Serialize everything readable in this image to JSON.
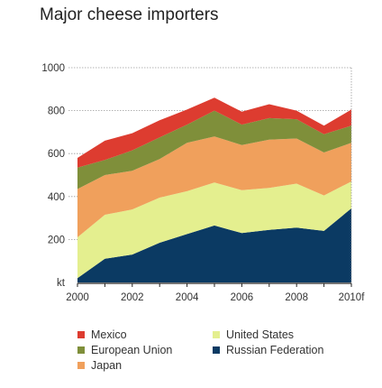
{
  "chart_data": {
    "type": "area",
    "stacked": true,
    "title": "Major cheese importers",
    "x": [
      2000,
      2001,
      2002,
      2003,
      2004,
      2005,
      2006,
      2007,
      2008,
      2009,
      2010
    ],
    "xticks": [
      "2000",
      "2002",
      "2004",
      "2006",
      "2008",
      "2010f"
    ],
    "yticks": [
      "kt",
      "200",
      "400",
      "600",
      "800",
      "1000"
    ],
    "ylim": [
      0,
      1000
    ],
    "grid": "dotted horizontal",
    "legend_position": "bottom",
    "series": [
      {
        "name": "Russian Federation",
        "color": "#0b3a63",
        "values": [
          20,
          110,
          130,
          185,
          225,
          265,
          230,
          245,
          255,
          240,
          345
        ]
      },
      {
        "name": "United States",
        "color": "#e4ef8f",
        "values": [
          190,
          205,
          210,
          210,
          200,
          200,
          200,
          195,
          205,
          165,
          125
        ]
      },
      {
        "name": "Japan",
        "color": "#f0a05c",
        "values": [
          225,
          185,
          180,
          180,
          225,
          215,
          210,
          225,
          210,
          200,
          180
        ]
      },
      {
        "name": "European Union",
        "color": "#7f8f3a",
        "values": [
          100,
          70,
          95,
          100,
          85,
          120,
          95,
          100,
          90,
          85,
          80
        ]
      },
      {
        "name": "Mexico",
        "color": "#dd3c30",
        "values": [
          45,
          90,
          80,
          80,
          70,
          60,
          60,
          65,
          40,
          40,
          75
        ]
      }
    ]
  },
  "legend": [
    {
      "label": "Mexico",
      "color": "#dd3c30"
    },
    {
      "label": "United States",
      "color": "#e4ef8f"
    },
    {
      "label": "European Union",
      "color": "#7f8f3a"
    },
    {
      "label": "Russian Federation",
      "color": "#0b3a63"
    },
    {
      "label": "Japan",
      "color": "#f0a05c"
    }
  ]
}
